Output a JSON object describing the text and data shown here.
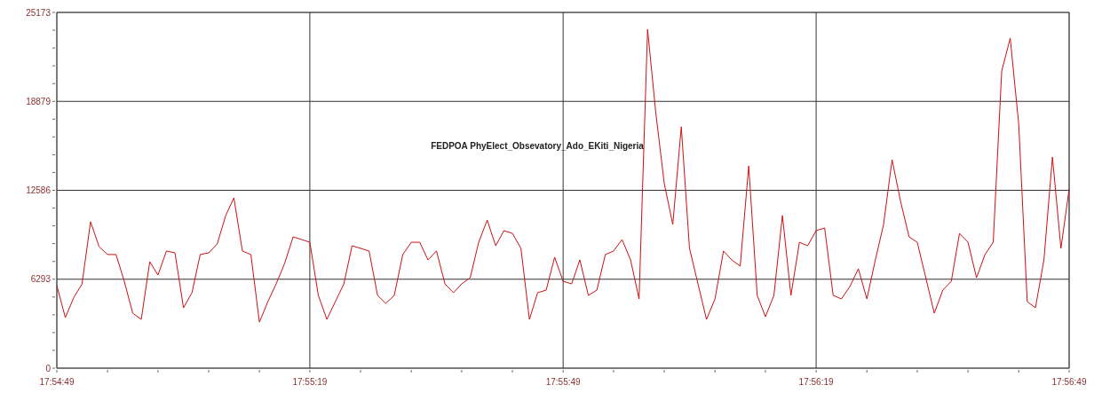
{
  "chart_data": {
    "type": "line",
    "title": "FEDPOA PhyElect_Obsevatory_Ado_EKiti_Nigeria",
    "grid": true,
    "marker": "none",
    "line_style": "solid",
    "xlim": [
      17.91361,
      17.94694
    ],
    "xticks": [
      {
        "value": 17.91361,
        "label": "17:54:49"
      },
      {
        "value": 17.91528,
        "label": null
      },
      {
        "value": 17.91694,
        "label": null
      },
      {
        "value": 17.91861,
        "label": null
      },
      {
        "value": 17.92028,
        "label": null
      },
      {
        "value": 17.92194,
        "label": "17:55:19"
      },
      {
        "value": 17.92361,
        "label": null
      },
      {
        "value": 17.92528,
        "label": null
      },
      {
        "value": 17.92694,
        "label": null
      },
      {
        "value": 17.92861,
        "label": null
      },
      {
        "value": 17.93028,
        "label": "17:55:49"
      },
      {
        "value": 17.93194,
        "label": null
      },
      {
        "value": 17.93361,
        "label": null
      },
      {
        "value": 17.93528,
        "label": null
      },
      {
        "value": 17.93694,
        "label": null
      },
      {
        "value": 17.93861,
        "label": "17:56:19"
      },
      {
        "value": 17.94028,
        "label": null
      },
      {
        "value": 17.94194,
        "label": null
      },
      {
        "value": 17.94361,
        "label": null
      },
      {
        "value": 17.94528,
        "label": null
      },
      {
        "value": 17.94694,
        "label": "17:56:49"
      }
    ],
    "ylim": [
      0,
      25173
    ],
    "yticks": [
      0,
      {
        "value": 1258.6,
        "label": null
      },
      {
        "value": 2517.2,
        "label": null
      },
      {
        "value": 3775.8,
        "label": null
      },
      {
        "value": 5034.4,
        "label": null
      },
      6293,
      {
        "value": 7551.6,
        "label": null
      },
      {
        "value": 8810.2,
        "label": null
      },
      {
        "value": 10068.8,
        "label": null
      },
      {
        "value": 11327.4,
        "label": null
      },
      12586,
      {
        "value": 13844.6,
        "label": null
      },
      {
        "value": 15103.2,
        "label": null
      },
      {
        "value": 16361.8,
        "label": null
      },
      {
        "value": 17620.4,
        "label": null
      },
      18879,
      {
        "value": 20137.6,
        "label": null
      },
      {
        "value": 21396.2,
        "label": null
      },
      {
        "value": 22654.8,
        "label": null
      },
      {
        "value": 23913.4,
        "label": null
      },
      25173
    ],
    "series": [
      {
        "color": "#cc1111",
        "x": [
          17.91361,
          17.91389,
          17.91417,
          17.91444,
          17.91472,
          17.915,
          17.91528,
          17.91556,
          17.91583,
          17.91611,
          17.91639,
          17.91667,
          17.91694,
          17.91722,
          17.9175,
          17.91778,
          17.91806,
          17.91833,
          17.91861,
          17.91889,
          17.91917,
          17.91944,
          17.91972,
          17.92,
          17.92028,
          17.92056,
          17.92083,
          17.92111,
          17.92139,
          17.92167,
          17.92194,
          17.92222,
          17.9225,
          17.92278,
          17.92306,
          17.92333,
          17.92361,
          17.92389,
          17.92417,
          17.92444,
          17.92472,
          17.925,
          17.92528,
          17.92556,
          17.92583,
          17.92611,
          17.92639,
          17.92667,
          17.92694,
          17.92722,
          17.9275,
          17.92778,
          17.92806,
          17.92833,
          17.92861,
          17.92889,
          17.92917,
          17.92944,
          17.92972,
          17.93,
          17.93028,
          17.93056,
          17.93083,
          17.93111,
          17.93139,
          17.93167,
          17.93194,
          17.93222,
          17.9325,
          17.93278,
          17.93306,
          17.93333,
          17.93361,
          17.93389,
          17.93417,
          17.93444,
          17.93472,
          17.935,
          17.93528,
          17.93556,
          17.93583,
          17.93611,
          17.93639,
          17.93667,
          17.93694,
          17.93722,
          17.9375,
          17.93778,
          17.93806,
          17.93833,
          17.93861,
          17.93889,
          17.93917,
          17.93944,
          17.93972,
          17.94,
          17.94028,
          17.94056,
          17.94083,
          17.94111,
          17.94139,
          17.94167,
          17.94194,
          17.94222,
          17.9425,
          17.94278,
          17.94306,
          17.94333,
          17.94361,
          17.94389,
          17.94417,
          17.94444,
          17.94472,
          17.945,
          17.94528,
          17.94556,
          17.94583,
          17.94611,
          17.94639,
          17.94667,
          17.94694
        ],
        "values": [
          5840,
          3580,
          5000,
          5960,
          10360,
          8600,
          8040,
          8040,
          6150,
          3890,
          3450,
          7530,
          6590,
          8290,
          8160,
          4270,
          5340,
          8040,
          8160,
          8790,
          10800,
          12050,
          8290,
          8040,
          3260,
          4710,
          5960,
          7410,
          9290,
          9100,
          8910,
          5150,
          3450,
          4710,
          5960,
          8660,
          8480,
          8290,
          5150,
          4580,
          5150,
          8040,
          8910,
          8910,
          7660,
          8290,
          5960,
          5340,
          5960,
          6400,
          8910,
          10480,
          8660,
          9730,
          9540,
          8480,
          3450,
          5340,
          5520,
          7850,
          6150,
          5960,
          7660,
          5150,
          5520,
          8040,
          8290,
          9100,
          7660,
          4900,
          23980,
          18080,
          13060,
          10170,
          17080,
          8480,
          5960,
          3450,
          4900,
          8290,
          7660,
          7220,
          14310,
          5150,
          3640,
          5150,
          10800,
          5150,
          8910,
          8660,
          9730,
          9920,
          5150,
          4900,
          5770,
          7030,
          4900,
          7660,
          10170,
          14750,
          11800,
          9290,
          8910,
          6400,
          3890,
          5520,
          6150,
          9540,
          8910,
          6400,
          8040,
          8910,
          21030,
          23350,
          17260,
          4710,
          4270,
          7660,
          14940,
          8480,
          12680
        ]
      }
    ]
  }
}
